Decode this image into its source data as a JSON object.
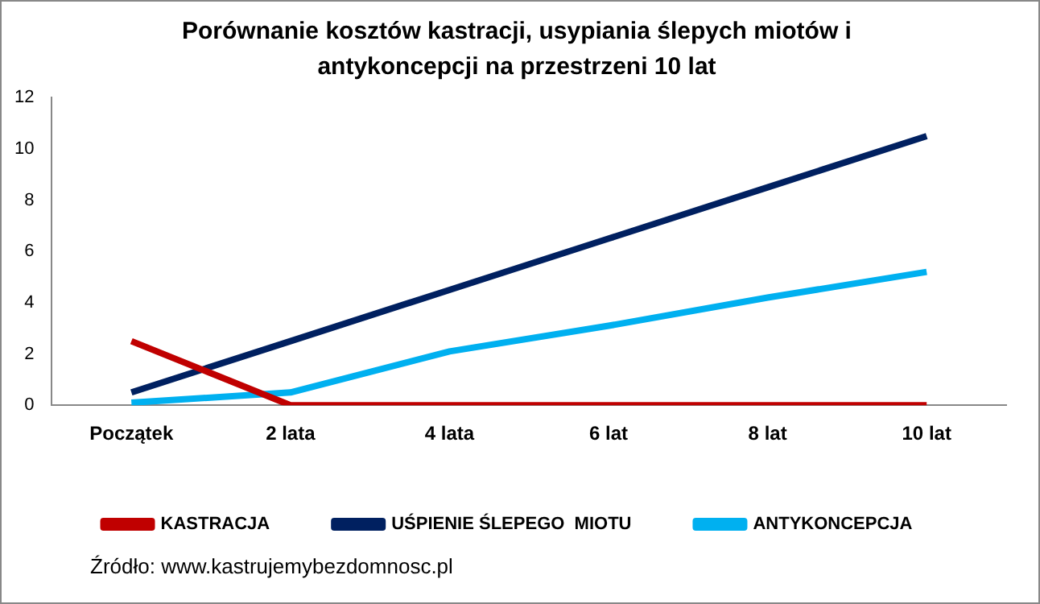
{
  "chart_data": {
    "type": "line",
    "title": "Porównanie kosztów kastracji, usypiania ślepych miotów i antykoncepcji na przestrzeni 10 lat",
    "categories": [
      "Początek",
      "2 lata",
      "4 lata",
      "6 lat",
      "8 lat",
      "10 lat"
    ],
    "series": [
      {
        "name": "KASTRACJA",
        "color": "#c00000",
        "values": [
          2.5,
          0,
          0,
          0,
          0,
          0
        ]
      },
      {
        "name": "UŚPIENIE ŚLEPEGO  MIOTU",
        "color": "#002060",
        "values": [
          0.5,
          2.5,
          4.5,
          6.5,
          8.5,
          10.5
        ]
      },
      {
        "name": "ANTYKONCEPCJA",
        "color": "#00b0f0",
        "values": [
          0.1,
          0.5,
          2.1,
          3.1,
          4.2,
          5.2
        ]
      }
    ],
    "ylim": [
      0,
      12
    ],
    "yticks": [
      0,
      2,
      4,
      6,
      8,
      10,
      12
    ],
    "grid": false,
    "legend": "bottom",
    "marker": "none",
    "line_style": "solid",
    "annotations": [
      "Źródło: www.kastrujemybezdomnosc.pl"
    ]
  }
}
